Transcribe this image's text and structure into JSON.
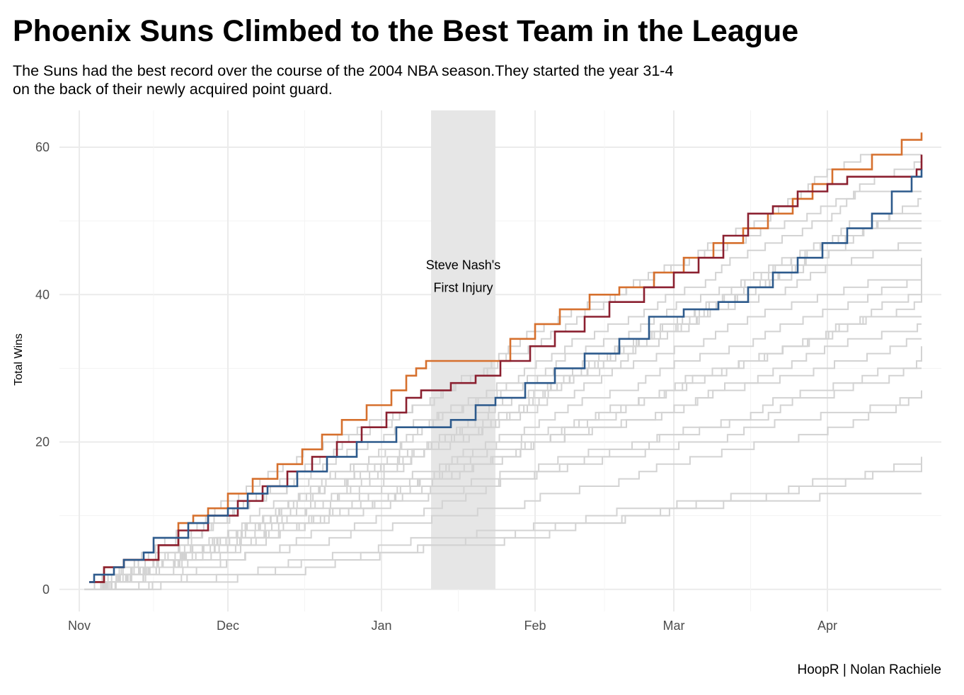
{
  "chart_data": {
    "type": "line",
    "step": true,
    "title": "Phoenix Suns Climbed to the Best Team in the League",
    "subtitle": "The Suns had the best record over the course of the 2004 NBA season.They started the year 31-4\non the back of their newly acquired point guard.",
    "ylabel": "Total Wins",
    "xlabel": "",
    "caption": "HoopR | Nolan Rachiele",
    "x_ticks": [
      "Nov",
      "Dec",
      "Jan",
      "Feb",
      "Mar",
      "Apr"
    ],
    "y_ticks": [
      0,
      20,
      40,
      60
    ],
    "ylim": [
      -3,
      65
    ],
    "xlim": [
      "2004-10-28",
      "2005-04-24"
    ],
    "grid": true,
    "annotation": {
      "lines": [
        "Steve Nash's",
        "First Injury"
      ],
      "x_start": "2005-01-11",
      "x_end": "2005-01-24",
      "fill": "#e6e6e6"
    },
    "highlight_series": [
      {
        "color": "#d6702e",
        "points": [
          [
            "2004-11-03",
            1
          ],
          [
            "2004-11-06",
            3
          ],
          [
            "2004-11-10",
            4
          ],
          [
            "2004-11-17",
            6
          ],
          [
            "2004-11-21",
            9
          ],
          [
            "2004-11-24",
            10
          ],
          [
            "2004-11-27",
            11
          ],
          [
            "2004-12-01",
            13
          ],
          [
            "2004-12-06",
            15
          ],
          [
            "2004-12-11",
            17
          ],
          [
            "2004-12-16",
            19
          ],
          [
            "2004-12-20",
            21
          ],
          [
            "2004-12-24",
            23
          ],
          [
            "2004-12-29",
            25
          ],
          [
            "2005-01-03",
            27
          ],
          [
            "2005-01-06",
            29
          ],
          [
            "2005-01-08",
            30
          ],
          [
            "2005-01-10",
            31
          ],
          [
            "2005-01-24",
            31
          ],
          [
            "2005-01-27",
            34
          ],
          [
            "2005-02-01",
            36
          ],
          [
            "2005-02-06",
            38
          ],
          [
            "2005-02-12",
            40
          ],
          [
            "2005-02-18",
            41
          ],
          [
            "2005-02-25",
            43
          ],
          [
            "2005-03-03",
            45
          ],
          [
            "2005-03-09",
            47
          ],
          [
            "2005-03-15",
            49
          ],
          [
            "2005-03-20",
            51
          ],
          [
            "2005-03-25",
            53
          ],
          [
            "2005-03-29",
            55
          ],
          [
            "2005-04-02",
            57
          ],
          [
            "2005-04-10",
            59
          ],
          [
            "2005-04-16",
            61
          ],
          [
            "2005-04-20",
            62
          ]
        ]
      },
      {
        "color": "#8b2030",
        "points": [
          [
            "2004-11-03",
            1
          ],
          [
            "2004-11-06",
            3
          ],
          [
            "2004-11-10",
            4
          ],
          [
            "2004-11-17",
            6
          ],
          [
            "2004-11-21",
            8
          ],
          [
            "2004-11-27",
            10
          ],
          [
            "2004-12-03",
            12
          ],
          [
            "2004-12-08",
            14
          ],
          [
            "2004-12-13",
            16
          ],
          [
            "2004-12-18",
            18
          ],
          [
            "2004-12-23",
            20
          ],
          [
            "2004-12-28",
            22
          ],
          [
            "2005-01-02",
            24
          ],
          [
            "2005-01-06",
            26
          ],
          [
            "2005-01-09",
            27
          ],
          [
            "2005-01-15",
            28
          ],
          [
            "2005-01-20",
            29
          ],
          [
            "2005-01-25",
            31
          ],
          [
            "2005-01-31",
            33
          ],
          [
            "2005-02-05",
            35
          ],
          [
            "2005-02-11",
            37
          ],
          [
            "2005-02-16",
            39
          ],
          [
            "2005-02-23",
            41
          ],
          [
            "2005-03-01",
            43
          ],
          [
            "2005-03-06",
            45
          ],
          [
            "2005-03-11",
            48
          ],
          [
            "2005-03-16",
            51
          ],
          [
            "2005-03-21",
            52
          ],
          [
            "2005-03-26",
            54
          ],
          [
            "2005-04-01",
            55
          ],
          [
            "2005-04-05",
            56
          ],
          [
            "2005-04-19",
            57
          ],
          [
            "2005-04-20",
            59
          ]
        ]
      },
      {
        "color": "#2d5a8c",
        "points": [
          [
            "2004-11-03",
            1
          ],
          [
            "2004-11-04",
            2
          ],
          [
            "2004-11-08",
            3
          ],
          [
            "2004-11-10",
            4
          ],
          [
            "2004-11-14",
            5
          ],
          [
            "2004-11-16",
            7
          ],
          [
            "2004-11-23",
            9
          ],
          [
            "2004-11-27",
            10
          ],
          [
            "2004-12-01",
            11
          ],
          [
            "2004-12-05",
            13
          ],
          [
            "2004-12-09",
            14
          ],
          [
            "2004-12-15",
            16
          ],
          [
            "2004-12-21",
            18
          ],
          [
            "2004-12-27",
            20
          ],
          [
            "2005-01-04",
            22
          ],
          [
            "2005-01-15",
            23
          ],
          [
            "2005-01-20",
            25
          ],
          [
            "2005-01-24",
            26
          ],
          [
            "2005-01-30",
            28
          ],
          [
            "2005-02-05",
            30
          ],
          [
            "2005-02-11",
            32
          ],
          [
            "2005-02-18",
            34
          ],
          [
            "2005-02-24",
            37
          ],
          [
            "2005-03-03",
            38
          ],
          [
            "2005-03-10",
            39
          ],
          [
            "2005-03-16",
            41
          ],
          [
            "2005-03-21",
            43
          ],
          [
            "2005-03-26",
            45
          ],
          [
            "2005-03-31",
            47
          ],
          [
            "2005-04-05",
            49
          ],
          [
            "2005-04-10",
            51
          ],
          [
            "2005-04-14",
            54
          ],
          [
            "2005-04-18",
            56
          ],
          [
            "2005-04-20",
            57
          ]
        ]
      }
    ],
    "background_series_final_wins": [
      59,
      58,
      54,
      53,
      51,
      50,
      49,
      47,
      46,
      45,
      44,
      43,
      42,
      41,
      37,
      36,
      34,
      33,
      30,
      27,
      26,
      18,
      17,
      13
    ]
  }
}
